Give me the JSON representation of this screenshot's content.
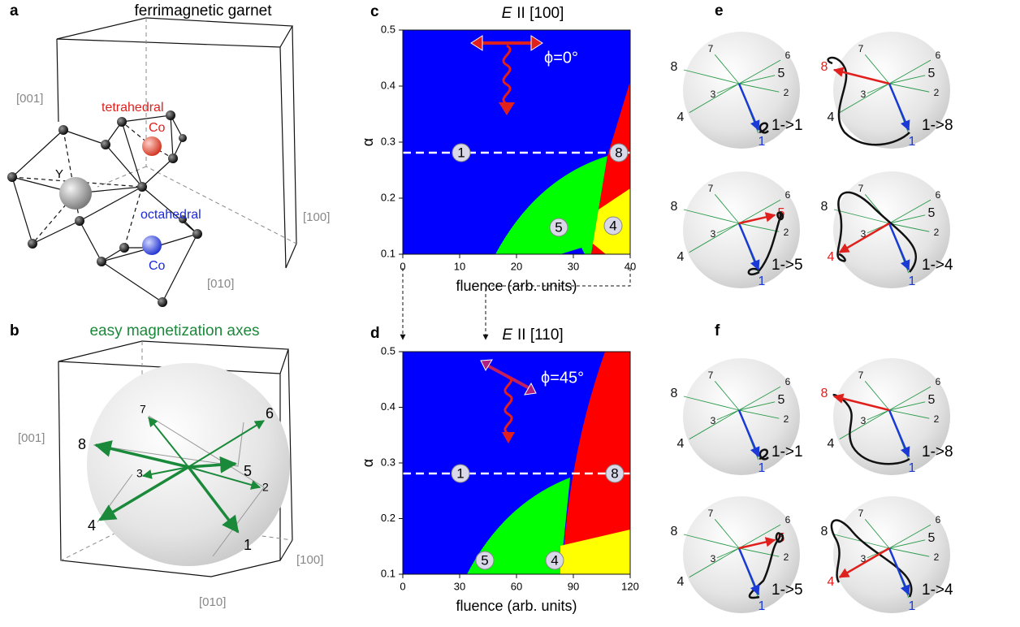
{
  "panels": {
    "a": {
      "label": "a",
      "title": "ferrimagnetic garnet",
      "directions": [
        "[001]",
        "[100]",
        "[010]"
      ],
      "ion_y": "Y",
      "tetra_site": "tetrahedral",
      "tetra_ion": "Co",
      "octa_site": "octahedral",
      "octa_ion": "Co"
    },
    "b": {
      "label": "b",
      "title": "easy magnetization axes",
      "directions": [
        "[001]",
        "[100]",
        "[010]"
      ],
      "axis_numbers": [
        "1",
        "2",
        "3",
        "4",
        "5",
        "6",
        "7",
        "8"
      ]
    },
    "c": {
      "label": "c",
      "title_field": "E",
      "title_direction": "II [100]",
      "xlabel": "fluence (arb. units)",
      "ylabel": "α",
      "xlim": [
        0,
        40
      ],
      "xticks": [
        0,
        10,
        20,
        30,
        40
      ],
      "ylim": [
        0.1,
        0.5
      ],
      "yticks": [
        0.1,
        0.2,
        0.3,
        0.4,
        0.5
      ],
      "polarization": "ϕ=0°",
      "states": [
        "1",
        "8",
        "5",
        "4"
      ]
    },
    "d": {
      "label": "d",
      "title_field": "E",
      "title_direction": "II [110]",
      "xlabel": "fluence (arb. units)",
      "ylabel": "α",
      "xlim": [
        0,
        120
      ],
      "xticks": [
        0,
        30,
        60,
        90,
        120
      ],
      "ylim": [
        0.1,
        0.5
      ],
      "yticks": [
        0.1,
        0.2,
        0.3,
        0.4,
        0.5
      ],
      "polarization": "ϕ=45°",
      "states": [
        "1",
        "8",
        "5",
        "4"
      ]
    },
    "e": {
      "label": "e",
      "axis_numbers": [
        "1",
        "2",
        "3",
        "4",
        "5",
        "6",
        "7",
        "8"
      ],
      "captions": [
        "1->1",
        "1->8",
        "1->5",
        "1->4"
      ]
    },
    "f": {
      "label": "f",
      "axis_numbers": [
        "1",
        "2",
        "3",
        "4",
        "5",
        "6",
        "7",
        "8"
      ],
      "captions": [
        "1->1",
        "1->8",
        "1->5",
        "1->4"
      ]
    }
  }
}
